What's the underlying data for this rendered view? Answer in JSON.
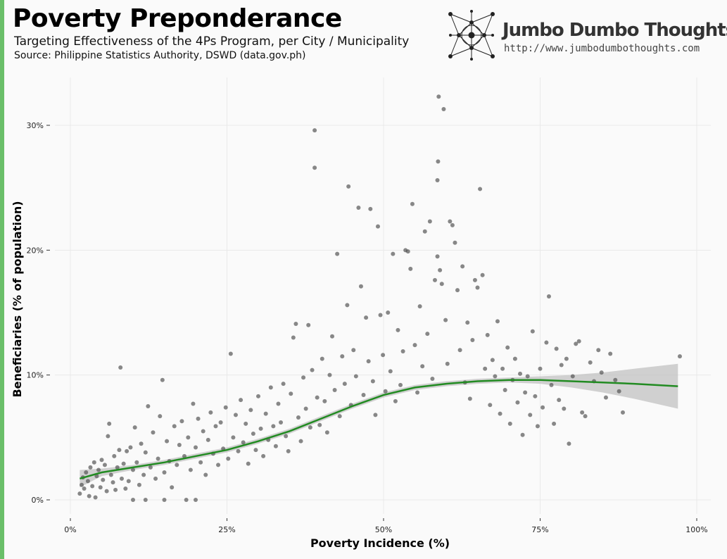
{
  "header": {
    "title": "Poverty Preponderance",
    "subtitle": "Targeting Effectiveness of the 4Ps Program, per City / Municipality",
    "source": "Source: Philippine Statistics Authority, DSWD (data.gov.ph)"
  },
  "brand": {
    "name": "Jumbo Dumbo Thoughts",
    "url": "http://www.jumbodumbothoughts.com",
    "icon": "network-logo-icon"
  },
  "colors": {
    "accent_bar": "#6abf69",
    "points": "#4a4a4a",
    "trend_line": "#228b22",
    "confidence_band": "#bdbdbd",
    "grid": "#e9e9e9"
  },
  "chart_data": {
    "type": "scatter",
    "xlabel": "Poverty Incidence (%)",
    "ylabel": "Beneficiaries (% of population)",
    "xlim": [
      0,
      100
    ],
    "ylim": [
      0,
      30
    ],
    "x_ticks": [
      0,
      25,
      50,
      75,
      100
    ],
    "x_tick_labels": [
      "0%",
      "25%",
      "50%",
      "75%",
      "100%"
    ],
    "y_ticks": [
      0,
      10,
      20,
      30
    ],
    "y_tick_labels": [
      "0%",
      "10%",
      "20%",
      "30%"
    ],
    "grid": true,
    "legend": "none",
    "series": [
      {
        "kind": "points",
        "points": [
          [
            1.5,
            0.5
          ],
          [
            1.8,
            1.2
          ],
          [
            2.0,
            1.8
          ],
          [
            2.2,
            0.9
          ],
          [
            2.5,
            2.2
          ],
          [
            2.8,
            1.5
          ],
          [
            3.0,
            0.3
          ],
          [
            3.2,
            2.6
          ],
          [
            3.5,
            1.1
          ],
          [
            3.8,
            3.0
          ],
          [
            4.0,
            0.2
          ],
          [
            4.2,
            1.9
          ],
          [
            4.5,
            2.4
          ],
          [
            4.8,
            1.0
          ],
          [
            5.0,
            3.2
          ],
          [
            5.2,
            1.6
          ],
          [
            5.5,
            2.8
          ],
          [
            5.8,
            0.7
          ],
          [
            6.0,
            5.1
          ],
          [
            6.2,
            6.1
          ],
          [
            6.5,
            2.0
          ],
          [
            6.8,
            1.4
          ],
          [
            7.0,
            3.5
          ],
          [
            7.2,
            0.8
          ],
          [
            7.5,
            2.6
          ],
          [
            7.8,
            4.0
          ],
          [
            8.0,
            10.6
          ],
          [
            8.2,
            1.7
          ],
          [
            8.5,
            2.9
          ],
          [
            8.8,
            0.9
          ],
          [
            9.0,
            3.9
          ],
          [
            9.3,
            1.5
          ],
          [
            9.6,
            4.2
          ],
          [
            10.0,
            0.0
          ],
          [
            10.0,
            2.4
          ],
          [
            10.3,
            5.8
          ],
          [
            10.6,
            3.0
          ],
          [
            11.0,
            1.2
          ],
          [
            11.3,
            4.5
          ],
          [
            11.7,
            2.0
          ],
          [
            12.0,
            0.0
          ],
          [
            12.0,
            3.8
          ],
          [
            12.4,
            7.5
          ],
          [
            12.8,
            2.6
          ],
          [
            13.2,
            5.4
          ],
          [
            13.6,
            1.7
          ],
          [
            14.0,
            3.3
          ],
          [
            14.3,
            6.7
          ],
          [
            14.7,
            9.6
          ],
          [
            15.0,
            0.0
          ],
          [
            15.0,
            2.2
          ],
          [
            15.4,
            4.7
          ],
          [
            15.8,
            3.1
          ],
          [
            16.2,
            1.0
          ],
          [
            16.6,
            5.9
          ],
          [
            17.0,
            2.8
          ],
          [
            17.4,
            4.4
          ],
          [
            17.8,
            6.3
          ],
          [
            18.2,
            3.5
          ],
          [
            18.5,
            0.0
          ],
          [
            18.8,
            5.0
          ],
          [
            19.2,
            2.4
          ],
          [
            19.6,
            7.7
          ],
          [
            20.0,
            0.0
          ],
          [
            20.0,
            4.2
          ],
          [
            20.4,
            6.5
          ],
          [
            20.8,
            3.0
          ],
          [
            21.2,
            5.5
          ],
          [
            21.6,
            2.0
          ],
          [
            22.0,
            4.8
          ],
          [
            22.4,
            7.0
          ],
          [
            22.8,
            3.7
          ],
          [
            23.2,
            5.9
          ],
          [
            23.6,
            2.8
          ],
          [
            24.0,
            6.2
          ],
          [
            24.4,
            4.1
          ],
          [
            24.8,
            7.4
          ],
          [
            25.2,
            3.3
          ],
          [
            25.6,
            11.7
          ],
          [
            26.0,
            5.0
          ],
          [
            26.4,
            6.8
          ],
          [
            26.8,
            3.9
          ],
          [
            27.2,
            8.0
          ],
          [
            27.6,
            4.6
          ],
          [
            28.0,
            6.1
          ],
          [
            28.4,
            2.9
          ],
          [
            28.8,
            7.2
          ],
          [
            29.2,
            5.3
          ],
          [
            29.6,
            4.0
          ],
          [
            30.0,
            8.3
          ],
          [
            30.4,
            5.7
          ],
          [
            30.8,
            3.5
          ],
          [
            31.2,
            6.9
          ],
          [
            31.6,
            4.8
          ],
          [
            32.0,
            9.0
          ],
          [
            32.4,
            5.9
          ],
          [
            32.8,
            4.3
          ],
          [
            33.2,
            7.7
          ],
          [
            33.6,
            6.2
          ],
          [
            34.0,
            9.3
          ],
          [
            34.4,
            5.1
          ],
          [
            34.8,
            3.9
          ],
          [
            35.2,
            8.5
          ],
          [
            35.6,
            13.0
          ],
          [
            36.0,
            14.1
          ],
          [
            36.4,
            6.6
          ],
          [
            36.8,
            4.7
          ],
          [
            37.2,
            9.8
          ],
          [
            37.6,
            7.3
          ],
          [
            38.0,
            14.0
          ],
          [
            38.3,
            5.8
          ],
          [
            38.6,
            10.4
          ],
          [
            39.0,
            29.6
          ],
          [
            39.0,
            26.6
          ],
          [
            39.4,
            8.2
          ],
          [
            39.8,
            6.0
          ],
          [
            40.2,
            11.3
          ],
          [
            40.6,
            7.9
          ],
          [
            41.0,
            5.4
          ],
          [
            41.4,
            10.0
          ],
          [
            41.8,
            13.1
          ],
          [
            42.2,
            8.8
          ],
          [
            42.6,
            19.7
          ],
          [
            43.0,
            6.7
          ],
          [
            43.4,
            11.5
          ],
          [
            43.8,
            9.3
          ],
          [
            44.2,
            15.6
          ],
          [
            44.4,
            25.1
          ],
          [
            44.8,
            7.6
          ],
          [
            45.2,
            12.0
          ],
          [
            45.6,
            9.9
          ],
          [
            46.0,
            23.4
          ],
          [
            46.4,
            17.1
          ],
          [
            46.8,
            8.4
          ],
          [
            47.2,
            14.6
          ],
          [
            47.6,
            11.1
          ],
          [
            47.9,
            23.3
          ],
          [
            48.3,
            9.5
          ],
          [
            48.7,
            6.8
          ],
          [
            49.1,
            21.9
          ],
          [
            49.5,
            14.8
          ],
          [
            49.9,
            11.6
          ],
          [
            50.3,
            8.7
          ],
          [
            50.7,
            15.0
          ],
          [
            51.1,
            10.3
          ],
          [
            51.5,
            19.7
          ],
          [
            51.9,
            7.9
          ],
          [
            52.3,
            13.6
          ],
          [
            52.7,
            9.2
          ],
          [
            53.1,
            11.9
          ],
          [
            53.5,
            20.0
          ],
          [
            53.9,
            19.9
          ],
          [
            54.3,
            18.5
          ],
          [
            54.6,
            23.7
          ],
          [
            55.0,
            12.4
          ],
          [
            55.4,
            8.6
          ],
          [
            55.8,
            15.5
          ],
          [
            56.2,
            10.7
          ],
          [
            56.6,
            21.5
          ],
          [
            57.0,
            13.3
          ],
          [
            57.4,
            22.3
          ],
          [
            57.8,
            9.7
          ],
          [
            58.2,
            17.6
          ],
          [
            58.6,
            19.5
          ],
          [
            58.6,
            25.6
          ],
          [
            58.7,
            27.1
          ],
          [
            58.8,
            32.3
          ],
          [
            59.0,
            18.4
          ],
          [
            59.3,
            17.3
          ],
          [
            59.6,
            31.3
          ],
          [
            59.9,
            14.4
          ],
          [
            60.2,
            10.9
          ],
          [
            60.6,
            22.3
          ],
          [
            61.0,
            22.0
          ],
          [
            61.4,
            20.6
          ],
          [
            61.8,
            16.8
          ],
          [
            62.2,
            12.0
          ],
          [
            62.6,
            18.7
          ],
          [
            63.0,
            9.4
          ],
          [
            63.4,
            14.2
          ],
          [
            63.8,
            8.1
          ],
          [
            64.2,
            12.8
          ],
          [
            64.6,
            17.6
          ],
          [
            65.0,
            17.0
          ],
          [
            65.4,
            24.9
          ],
          [
            65.8,
            18.0
          ],
          [
            66.2,
            10.5
          ],
          [
            66.6,
            13.2
          ],
          [
            67.0,
            7.6
          ],
          [
            67.4,
            11.2
          ],
          [
            67.8,
            9.9
          ],
          [
            68.2,
            14.3
          ],
          [
            68.6,
            6.9
          ],
          [
            69.0,
            10.5
          ],
          [
            69.4,
            8.8
          ],
          [
            69.8,
            12.2
          ],
          [
            70.2,
            6.1
          ],
          [
            70.6,
            9.6
          ],
          [
            71.0,
            11.3
          ],
          [
            71.4,
            7.8
          ],
          [
            71.8,
            10.1
          ],
          [
            72.2,
            5.2
          ],
          [
            72.6,
            8.6
          ],
          [
            73.0,
            9.9
          ],
          [
            73.4,
            6.8
          ],
          [
            73.8,
            13.5
          ],
          [
            74.2,
            8.3
          ],
          [
            74.6,
            5.9
          ],
          [
            75.0,
            10.5
          ],
          [
            75.4,
            7.4
          ],
          [
            76.0,
            12.6
          ],
          [
            76.4,
            16.3
          ],
          [
            76.8,
            9.2
          ],
          [
            77.2,
            6.1
          ],
          [
            77.6,
            12.1
          ],
          [
            78.0,
            8.0
          ],
          [
            78.4,
            10.8
          ],
          [
            78.8,
            7.3
          ],
          [
            79.2,
            11.3
          ],
          [
            79.6,
            4.5
          ],
          [
            80.2,
            9.9
          ],
          [
            80.7,
            12.5
          ],
          [
            81.2,
            12.7
          ],
          [
            81.7,
            7.0
          ],
          [
            82.2,
            6.7
          ],
          [
            83.0,
            11.0
          ],
          [
            83.6,
            9.5
          ],
          [
            84.3,
            12.0
          ],
          [
            84.8,
            10.2
          ],
          [
            85.5,
            8.2
          ],
          [
            86.2,
            11.7
          ],
          [
            87.0,
            9.6
          ],
          [
            87.6,
            8.7
          ],
          [
            88.2,
            7.0
          ],
          [
            97.3,
            11.5
          ]
        ]
      },
      {
        "kind": "smooth",
        "x": [
          1.5,
          5,
          10,
          15,
          20,
          25,
          30,
          35,
          40,
          45,
          50,
          55,
          60,
          65,
          70,
          75,
          80,
          85,
          90,
          97
        ],
        "y": [
          1.7,
          2.2,
          2.6,
          3.0,
          3.5,
          4.0,
          4.7,
          5.5,
          6.5,
          7.5,
          8.4,
          9.0,
          9.3,
          9.5,
          9.6,
          9.6,
          9.5,
          9.4,
          9.3,
          9.1
        ],
        "upper": [
          2.4,
          2.5,
          2.8,
          3.2,
          3.7,
          4.2,
          4.9,
          5.7,
          6.7,
          7.7,
          8.6,
          9.2,
          9.5,
          9.7,
          9.8,
          9.9,
          10.0,
          10.2,
          10.5,
          10.9
        ],
        "lower": [
          1.0,
          1.9,
          2.4,
          2.8,
          3.3,
          3.8,
          4.5,
          5.3,
          6.3,
          7.3,
          8.2,
          8.8,
          9.1,
          9.3,
          9.4,
          9.3,
          9.0,
          8.6,
          8.1,
          7.3
        ]
      }
    ]
  }
}
